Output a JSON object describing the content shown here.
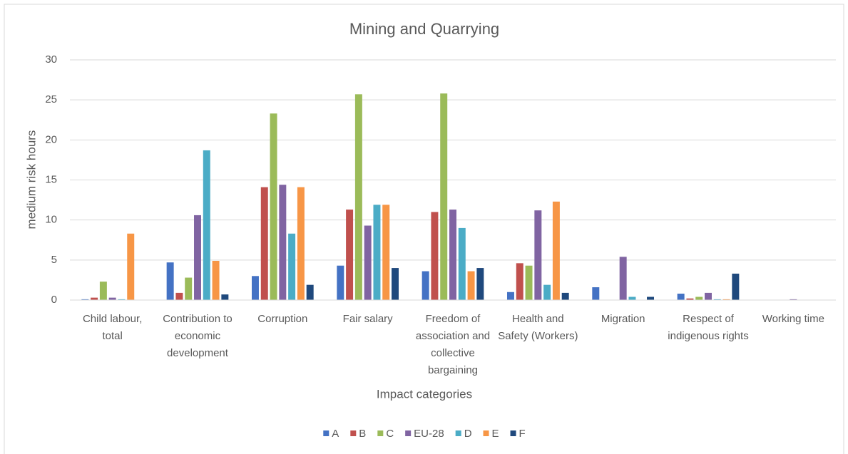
{
  "chart_data": {
    "type": "bar",
    "title": "Mining and Quarrying",
    "xlabel": "Impact categories",
    "ylabel": "medium risk hours",
    "categories": [
      "Child labour, total",
      "Contribution to economic development",
      "Corruption",
      "Fair salary",
      "Freedom of association and collective bargaining",
      "Health and Safety (Workers)",
      "Migration",
      "Respect of indigenous rights",
      "Working time"
    ],
    "series": [
      {
        "name": "A",
        "color": "#4472c4",
        "values": [
          0.1,
          4.7,
          3.0,
          4.3,
          3.6,
          1.0,
          1.6,
          0.8,
          0
        ]
      },
      {
        "name": "B",
        "color": "#c0504d",
        "values": [
          0.3,
          0.9,
          14.1,
          11.3,
          11.0,
          4.6,
          0,
          0.2,
          0
        ]
      },
      {
        "name": "C",
        "color": "#9bbb59",
        "values": [
          2.3,
          2.8,
          23.3,
          25.7,
          25.8,
          4.3,
          0,
          0.4,
          0
        ]
      },
      {
        "name": "EU-28",
        "color": "#8064a2",
        "values": [
          0.3,
          10.6,
          14.4,
          9.3,
          11.3,
          11.2,
          5.4,
          0.9,
          0.1
        ]
      },
      {
        "name": "D",
        "color": "#4bacc6",
        "values": [
          0.1,
          18.7,
          8.3,
          11.9,
          9.0,
          1.9,
          0.4,
          0.1,
          0
        ]
      },
      {
        "name": "E",
        "color": "#f79646",
        "values": [
          8.3,
          4.9,
          14.1,
          11.9,
          3.6,
          12.3,
          0,
          0.1,
          0
        ]
      },
      {
        "name": "F",
        "color": "#1f497d",
        "values": [
          0,
          0.7,
          1.9,
          4.0,
          4.0,
          0.9,
          0.4,
          3.3,
          0
        ]
      }
    ],
    "ylim": [
      0,
      30
    ],
    "yticks": [
      0,
      5,
      10,
      15,
      20,
      25,
      30
    ],
    "grid": true,
    "legend": "bottom"
  }
}
